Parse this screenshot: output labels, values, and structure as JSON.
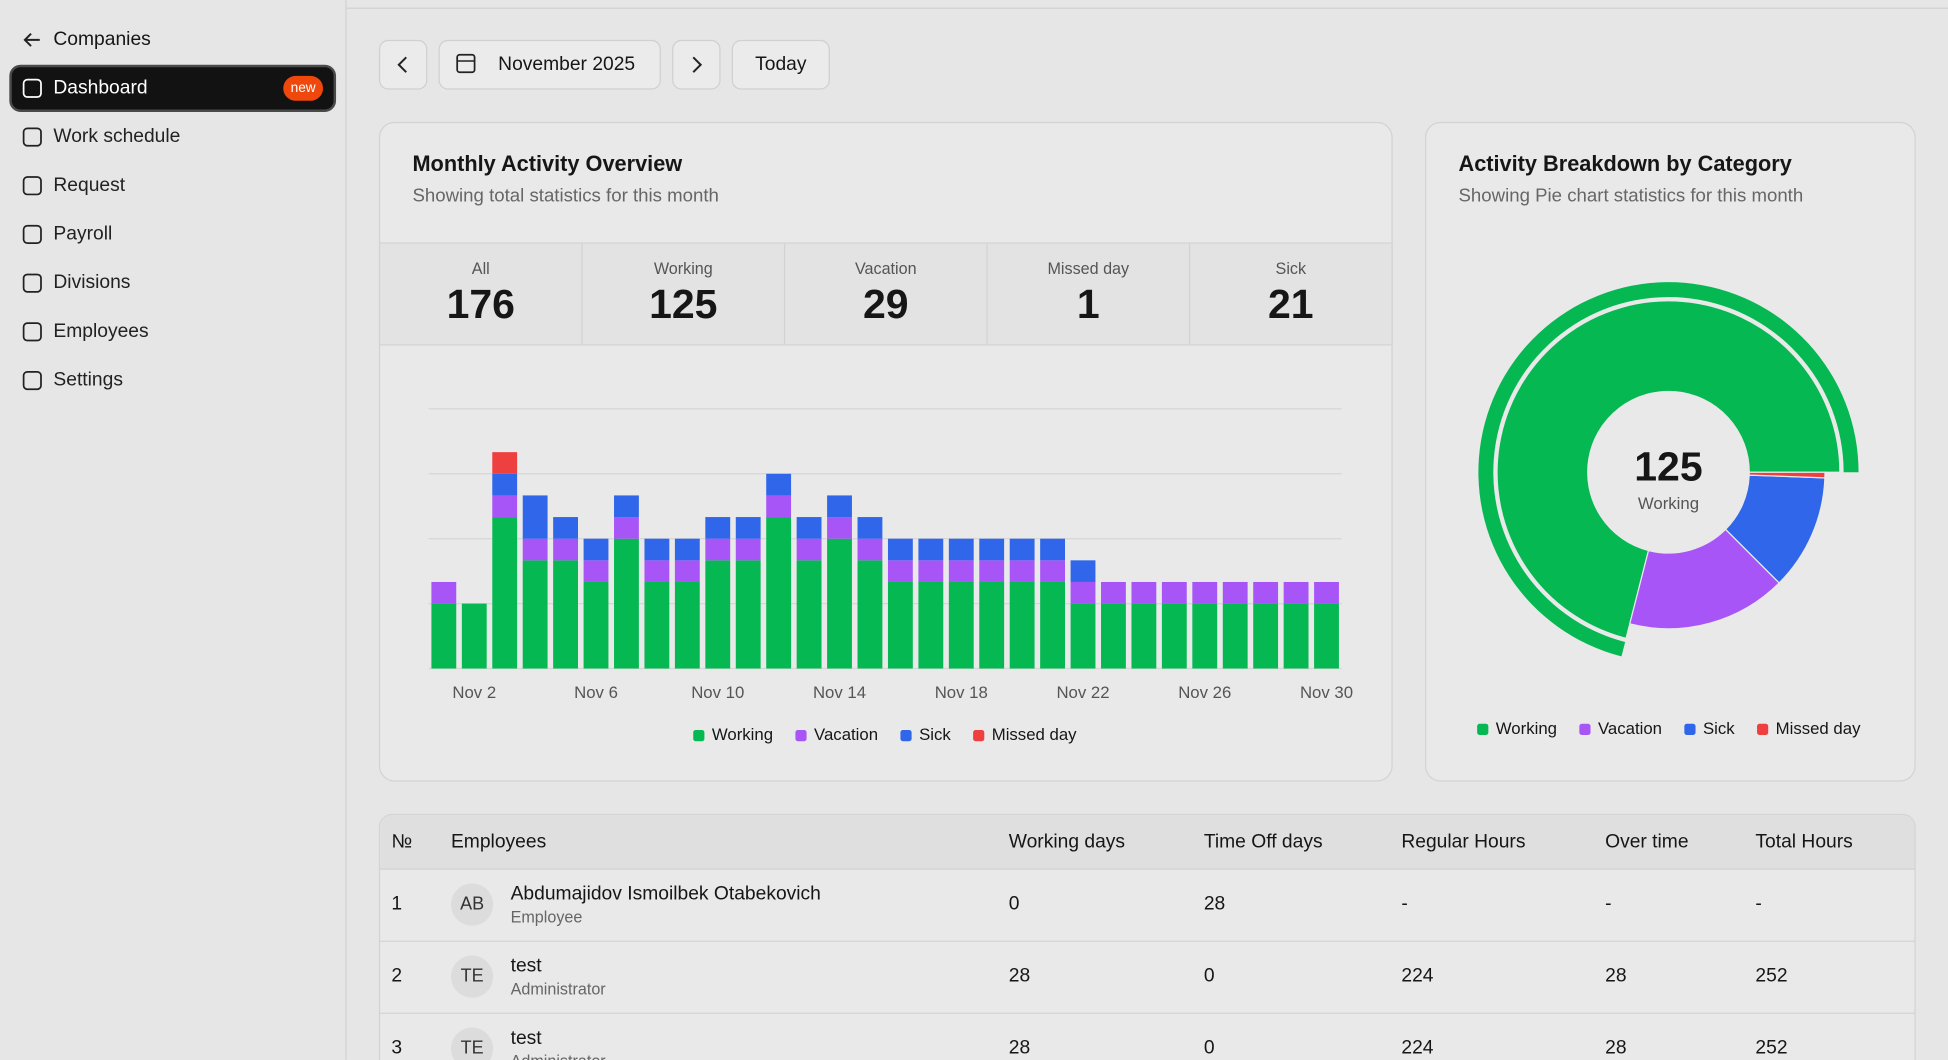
{
  "sidebar": {
    "back": "Companies",
    "items": [
      {
        "label": "Dashboard",
        "badge": "new"
      },
      {
        "label": "Work schedule"
      },
      {
        "label": "Request"
      },
      {
        "label": "Payroll"
      },
      {
        "label": "Divisions"
      },
      {
        "label": "Employees"
      },
      {
        "label": "Settings"
      }
    ]
  },
  "toolbar": {
    "month": "November 2025",
    "today": "Today"
  },
  "overview": {
    "stats": [
      {
        "label": "All",
        "value": 176
      },
      {
        "label": "Working",
        "value": 125
      },
      {
        "label": "Vacation",
        "value": 29
      },
      {
        "label": "Missed day",
        "value": 1
      },
      {
        "label": "Sick",
        "value": 21
      }
    ]
  },
  "chart_data": [
    {
      "type": "bar",
      "stacked": true,
      "title": "Monthly Activity Overview",
      "subtitle": "Showing total statistics for this month",
      "categories": [
        null,
        "Nov 2",
        null,
        null,
        null,
        "Nov 6",
        null,
        null,
        null,
        "Nov 10",
        null,
        null,
        null,
        "Nov 14",
        null,
        null,
        null,
        "Nov 18",
        null,
        null,
        null,
        "Nov 22",
        null,
        null,
        null,
        "Nov 26",
        null,
        null,
        null,
        "Nov 30"
      ],
      "series": [
        {
          "name": "Working",
          "color": "#05b852",
          "values": [
            3,
            3,
            7,
            5,
            5,
            4,
            6,
            4,
            4,
            5,
            5,
            7,
            5,
            6,
            5,
            4,
            4,
            4,
            4,
            4,
            4,
            3,
            3,
            3,
            3,
            3,
            3,
            3,
            3,
            3
          ]
        },
        {
          "name": "Vacation",
          "color": "#a855f7",
          "values": [
            1,
            0,
            1,
            1,
            1,
            1,
            1,
            1,
            1,
            1,
            1,
            1,
            1,
            1,
            1,
            1,
            1,
            1,
            1,
            1,
            1,
            1,
            1,
            1,
            1,
            1,
            1,
            1,
            1,
            1
          ]
        },
        {
          "name": "Sick",
          "color": "#2f66ea",
          "values": [
            0,
            0,
            1,
            2,
            1,
            1,
            1,
            1,
            1,
            1,
            1,
            1,
            1,
            1,
            1,
            1,
            1,
            1,
            1,
            1,
            1,
            1,
            0,
            0,
            0,
            0,
            0,
            0,
            0,
            0
          ]
        },
        {
          "name": "Missed day",
          "color": "#ef4040",
          "values": [
            0,
            0,
            1,
            0,
            0,
            0,
            0,
            0,
            0,
            0,
            0,
            0,
            0,
            0,
            0,
            0,
            0,
            0,
            0,
            0,
            0,
            0,
            0,
            0,
            0,
            0,
            0,
            0,
            0,
            0
          ]
        }
      ],
      "ylim": [
        0,
        12
      ],
      "yticks": [
        0,
        3,
        6,
        9,
        12
      ],
      "grid": true
    },
    {
      "type": "pie",
      "title": "Activity Breakdown by Category",
      "subtitle": "Showing Pie chart statistics for this month",
      "categories": [
        "Working",
        "Vacation",
        "Sick",
        "Missed day"
      ],
      "values": [
        125,
        29,
        21,
        1
      ],
      "colors": [
        "#05b852",
        "#a855f7",
        "#2f66ea",
        "#ef4040"
      ]
    }
  ],
  "table": {
    "columns": [
      "№",
      "Employees",
      "Working days",
      "Time Off days",
      "Regular Hours",
      "Over time",
      "Total Hours"
    ],
    "rows": [
      {
        "no": 1,
        "initials": "AB",
        "name": "Abdumajidov Ismoilbek Otabekovich",
        "role": "Employee",
        "cells": [
          0,
          28,
          "-",
          "-",
          "-"
        ]
      },
      {
        "no": 2,
        "initials": "TE",
        "name": "test",
        "role": "Administrator",
        "cells": [
          28,
          0,
          224,
          28,
          252
        ]
      },
      {
        "no": 3,
        "initials": "TE",
        "name": "test",
        "role": "Administrator",
        "cells": [
          28,
          0,
          224,
          28,
          252
        ]
      }
    ]
  }
}
